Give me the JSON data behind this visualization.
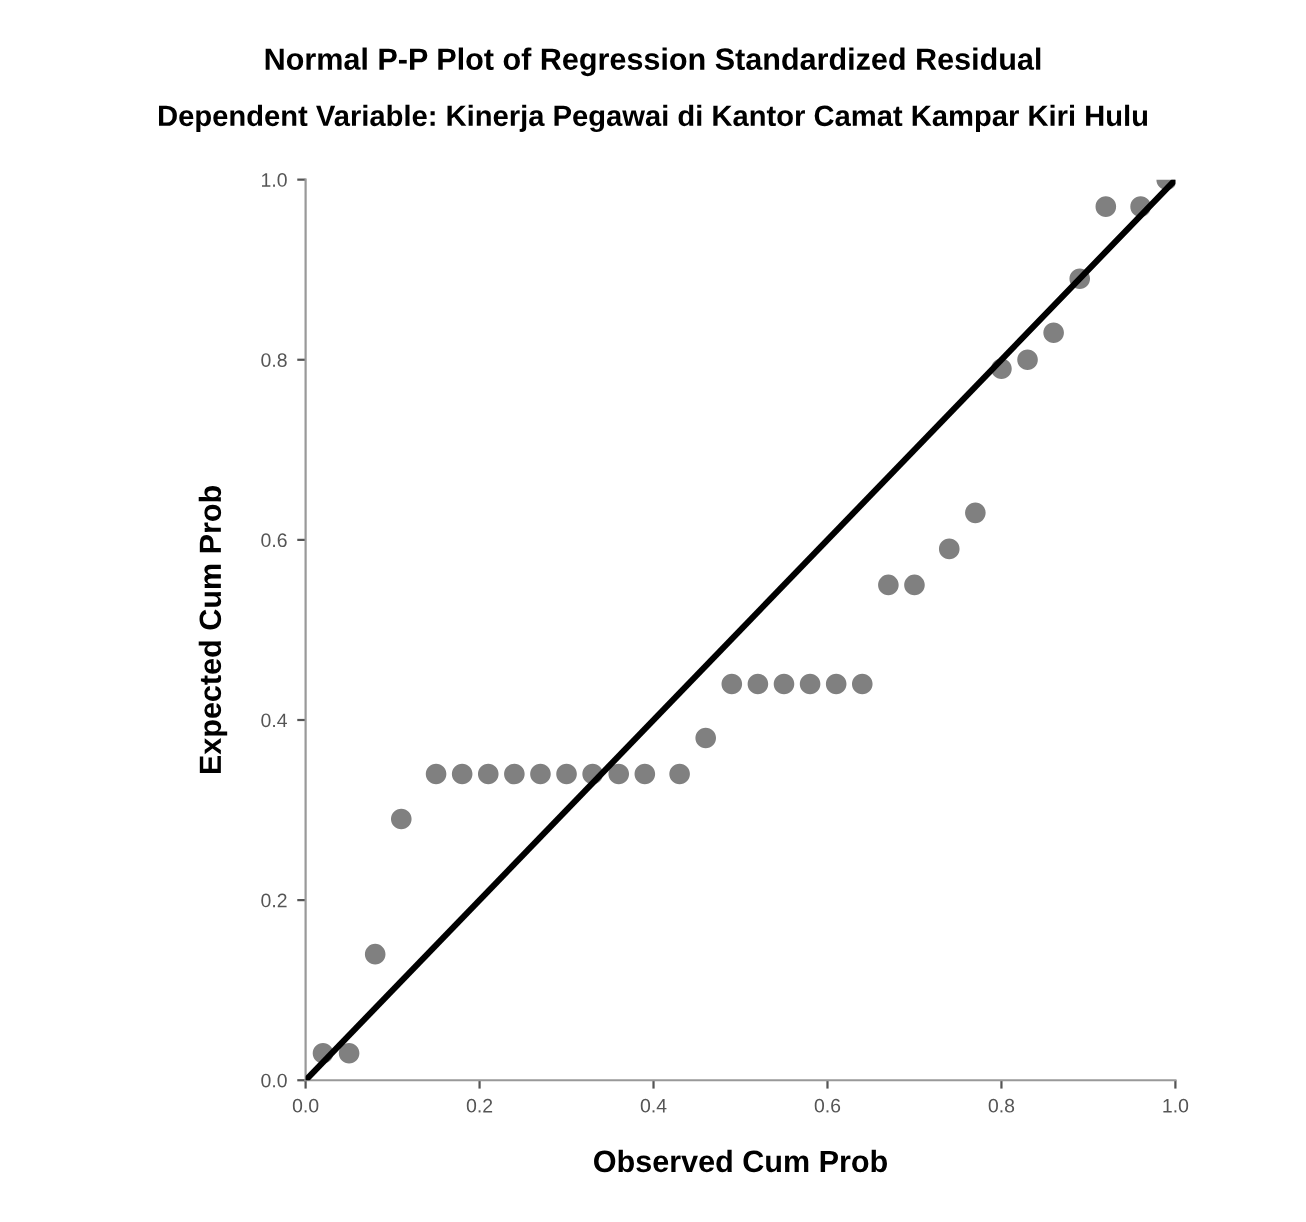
{
  "chart_data": {
    "type": "scatter",
    "title": "Normal P-P Plot of Regression Standardized Residual",
    "subtitle": "Dependent Variable: Kinerja Pegawai di Kantor Camat Kampar Kiri Hulu",
    "xlabel": "Observed Cum Prob",
    "ylabel": "Expected Cum Prob",
    "xlim": [
      0,
      1
    ],
    "ylim": [
      0,
      1
    ],
    "xticks": [
      {
        "value": 0,
        "label": "0.0"
      },
      {
        "value": 0.2,
        "label": "0.2"
      },
      {
        "value": 0.4,
        "label": "0.4"
      },
      {
        "value": 0.6,
        "label": "0.6"
      },
      {
        "value": 0.8,
        "label": "0.8"
      },
      {
        "value": 1,
        "label": "1.0"
      }
    ],
    "yticks": [
      {
        "value": 0,
        "label": "0.0"
      },
      {
        "value": 0.2,
        "label": "0.2"
      },
      {
        "value": 0.4,
        "label": "0.4"
      },
      {
        "value": 0.6,
        "label": "0.6"
      },
      {
        "value": 0.8,
        "label": "0.8"
      },
      {
        "value": 1,
        "label": "1.0"
      }
    ],
    "grid": false,
    "series": [
      {
        "marker": "circle",
        "color": "#808080",
        "x": [
          0.02,
          0.05,
          0.08,
          0.11,
          0.15,
          0.18,
          0.21,
          0.24,
          0.27,
          0.3,
          0.33,
          0.36,
          0.39,
          0.43,
          0.46,
          0.49,
          0.52,
          0.55,
          0.58,
          0.61,
          0.64,
          0.67,
          0.7,
          0.74,
          0.77,
          0.8,
          0.83,
          0.86,
          0.89,
          0.92,
          0.96,
          0.99
        ],
        "values": [
          0.03,
          0.03,
          0.14,
          0.29,
          0.34,
          0.34,
          0.34,
          0.34,
          0.34,
          0.34,
          0.34,
          0.34,
          0.34,
          0.34,
          0.38,
          0.44,
          0.44,
          0.44,
          0.44,
          0.44,
          0.44,
          0.55,
          0.55,
          0.59,
          0.63,
          0.79,
          0.8,
          0.83,
          0.89,
          0.97,
          0.97,
          1.0
        ]
      },
      {
        "type": "line",
        "marker": "none",
        "color": "#000000",
        "x": [
          0,
          1
        ],
        "values": [
          0,
          1
        ]
      }
    ]
  }
}
